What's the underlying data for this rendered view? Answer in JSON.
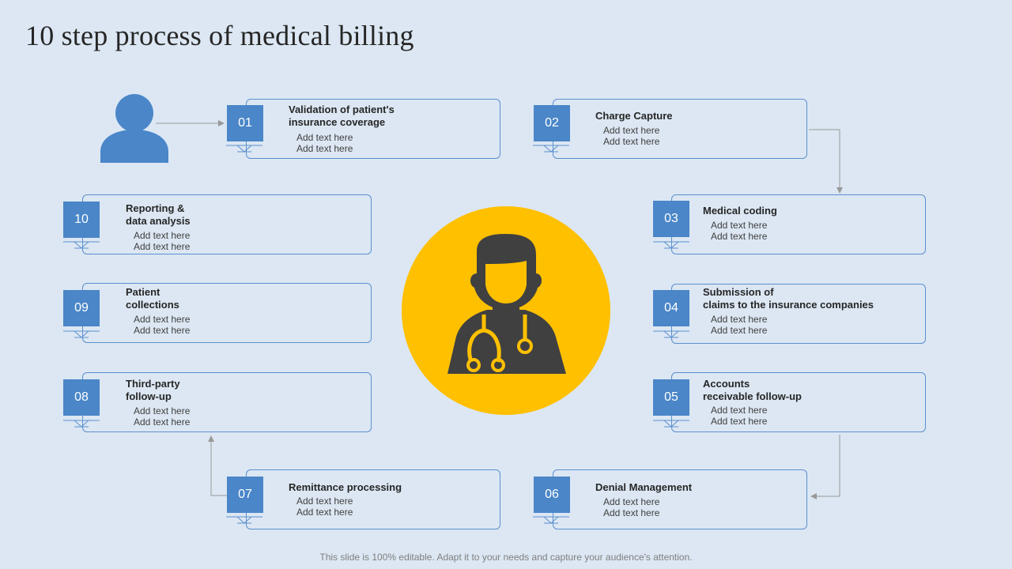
{
  "title": "10 step process of medical billing",
  "colors": {
    "background": "#dce7f3",
    "badge": "#4a86c8",
    "card_border": "#5b8fcf",
    "center_circle": "#ffc000",
    "doctor_icon": "#404040",
    "user_icon": "#4a86c8",
    "connector": "#999999"
  },
  "steps": [
    {
      "number": "01",
      "title": "Validation of patient's\ninsurance coverage",
      "line1": "Add text here",
      "line2": "Add text here"
    },
    {
      "number": "02",
      "title": "Charge Capture",
      "line1": "Add text here",
      "line2": "Add text here"
    },
    {
      "number": "03",
      "title": "Medical coding",
      "line1": "Add text here",
      "line2": "Add text here"
    },
    {
      "number": "04",
      "title": "Submission  of\nclaims to the insurance companies",
      "line1": "Add text here",
      "line2": "Add text here"
    },
    {
      "number": "05",
      "title": "Accounts\nreceivable follow-up",
      "line1": "Add text here",
      "line2": "Add text here"
    },
    {
      "number": "06",
      "title": "Denial Management",
      "line1": "Add text here",
      "line2": "Add text here"
    },
    {
      "number": "07",
      "title": "Remittance processing",
      "line1": "Add text here",
      "line2": "Add text here"
    },
    {
      "number": "08",
      "title": "Third-party\nfollow-up",
      "line1": "Add text here",
      "line2": "Add text here"
    },
    {
      "number": "09",
      "title": "Patient\ncollections",
      "line1": "Add text here",
      "line2": "Add text here"
    },
    {
      "number": "10",
      "title": "Reporting &\ndata analysis",
      "line1": "Add text here",
      "line2": "Add text here"
    }
  ],
  "icons": {
    "user": "user-icon",
    "center": "doctor-stethoscope-icon"
  },
  "footer": "This slide is 100% editable. Adapt it to your needs and capture your audience's attention."
}
